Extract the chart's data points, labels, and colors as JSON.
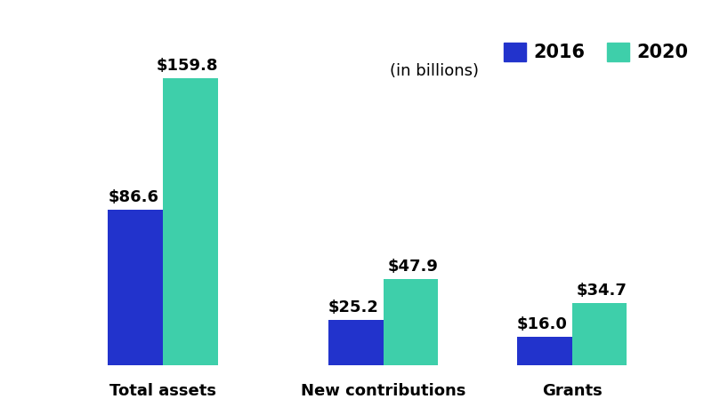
{
  "categories": [
    "Total assets",
    "New contributions",
    "Grants"
  ],
  "values_2016": [
    86.6,
    25.2,
    16.0
  ],
  "values_2020": [
    159.8,
    47.9,
    34.7
  ],
  "color_2016": "#2233CC",
  "color_2020": "#3ECFAA",
  "label_2016": "2016",
  "label_2020": "2020",
  "subtitle": "(in billions)",
  "bar_width": 0.35,
  "ylim": [
    0,
    185
  ],
  "xlim": [
    -0.5,
    3.8
  ],
  "background_color": "#ffffff",
  "label_fontsize": 13,
  "value_fontsize": 13,
  "legend_fontsize": 15,
  "subtitle_fontsize": 13,
  "tick_fontsize": 13
}
